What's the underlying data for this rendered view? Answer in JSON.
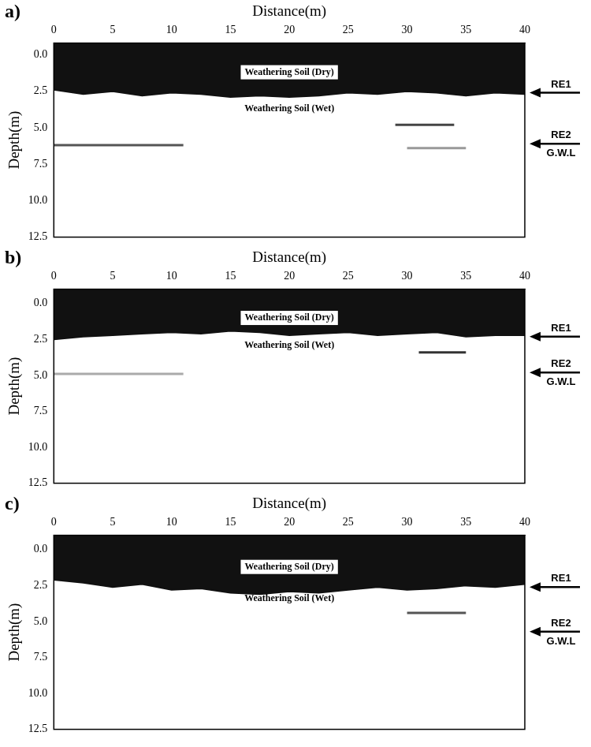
{
  "chart_data": [
    {
      "type": "line",
      "panel": "a)",
      "x_title": "Distance(m)",
      "y_title": "Depth(m)",
      "xlim": [
        0,
        40
      ],
      "xticks": [
        0,
        5,
        10,
        15,
        20,
        25,
        30,
        35,
        40
      ],
      "ylim": [
        12.5,
        -0.8
      ],
      "yticks": [
        {
          "value": 0,
          "label": "0.0"
        },
        {
          "value": 2.5,
          "label": "2.5"
        },
        {
          "value": 5,
          "label": "5.0"
        },
        {
          "value": 7.5,
          "label": "7.5"
        },
        {
          "value": 10,
          "label": "10.0"
        },
        {
          "value": 12.5,
          "label": "12.5"
        }
      ],
      "grid": false,
      "dry_layer": {
        "color": "#111111",
        "x": [
          0,
          2.5,
          5,
          7.5,
          10,
          12.5,
          15,
          17.5,
          20,
          22.5,
          25,
          27.5,
          30,
          32.5,
          35,
          37.5,
          40
        ],
        "base": [
          2.4,
          2.7,
          2.5,
          2.8,
          2.6,
          2.7,
          2.9,
          2.8,
          2.9,
          2.8,
          2.6,
          2.7,
          2.5,
          2.6,
          2.8,
          2.6,
          2.7
        ]
      },
      "reflectors": [
        {
          "x": [
            0,
            11
          ],
          "depth": 6.2,
          "color": "#555555"
        },
        {
          "x": [
            29,
            34
          ],
          "depth": 4.8,
          "color": "#444444"
        },
        {
          "x": [
            30,
            35
          ],
          "depth": 6.4,
          "color": "#999999"
        }
      ],
      "annotations": [
        {
          "text": "Weathering Soil (Dry)",
          "x": 20,
          "y": 1.2,
          "boxed": true
        },
        {
          "text": "Weathering Soil (Wet)",
          "x": 20,
          "y": 3.7,
          "boxed": false
        }
      ],
      "markers": [
        {
          "texts": [
            "RE1"
          ],
          "depth": 2.6
        },
        {
          "texts": [
            "RE2",
            "G.W.L"
          ],
          "depth": 6.1
        }
      ]
    },
    {
      "type": "line",
      "panel": "b)",
      "x_title": "Distance(m)",
      "y_title": "Depth(m)",
      "xlim": [
        0,
        40
      ],
      "xticks": [
        0,
        5,
        10,
        15,
        20,
        25,
        30,
        35,
        40
      ],
      "ylim": [
        12.5,
        -1.0
      ],
      "yticks": [
        {
          "value": 0,
          "label": "0.0"
        },
        {
          "value": 2.5,
          "label": "2.5"
        },
        {
          "value": 5,
          "label": "5.0"
        },
        {
          "value": 7.5,
          "label": "7.5"
        },
        {
          "value": 10,
          "label": "10.0"
        },
        {
          "value": 12.5,
          "label": "12.5"
        }
      ],
      "grid": false,
      "dry_layer": {
        "color": "#111111",
        "x": [
          0,
          2.5,
          5,
          7.5,
          10,
          12.5,
          15,
          17.5,
          20,
          22.5,
          25,
          27.5,
          30,
          32.5,
          35,
          37.5,
          40
        ],
        "base": [
          2.5,
          2.3,
          2.2,
          2.1,
          2.0,
          2.1,
          1.9,
          2.0,
          2.2,
          2.1,
          2.0,
          2.2,
          2.1,
          2.0,
          2.3,
          2.2,
          2.2
        ]
      },
      "reflectors": [
        {
          "x": [
            0,
            11
          ],
          "depth": 4.9,
          "color": "#aaaaaa"
        },
        {
          "x": [
            31,
            35
          ],
          "depth": 3.4,
          "color": "#333333"
        }
      ],
      "annotations": [
        {
          "text": "Weathering Soil (Dry)",
          "x": 20,
          "y": 1.0,
          "boxed": true
        },
        {
          "text": "Weathering Soil (Wet)",
          "x": 20,
          "y": 2.9,
          "boxed": false
        }
      ],
      "markers": [
        {
          "texts": [
            "RE1"
          ],
          "depth": 2.3
        },
        {
          "texts": [
            "RE2",
            "G.W.L"
          ],
          "depth": 4.8
        }
      ]
    },
    {
      "type": "line",
      "panel": "c)",
      "x_title": "Distance(m)",
      "y_title": "Depth(m)",
      "xlim": [
        0,
        40
      ],
      "xticks": [
        0,
        5,
        10,
        15,
        20,
        25,
        30,
        35,
        40
      ],
      "ylim": [
        12.5,
        -1.0
      ],
      "yticks": [
        {
          "value": 0,
          "label": "0.0"
        },
        {
          "value": 2.5,
          "label": "2.5"
        },
        {
          "value": 5,
          "label": "5.0"
        },
        {
          "value": 7.5,
          "label": "7.5"
        },
        {
          "value": 10,
          "label": "10.0"
        },
        {
          "value": 12.5,
          "label": "12.5"
        }
      ],
      "grid": false,
      "dry_layer": {
        "color": "#111111",
        "x": [
          0,
          2.5,
          5,
          7.5,
          10,
          12.5,
          15,
          17.5,
          20,
          22.5,
          25,
          27.5,
          30,
          32.5,
          35,
          37.5,
          40
        ],
        "base": [
          2.1,
          2.3,
          2.6,
          2.4,
          2.8,
          2.7,
          3.0,
          3.1,
          2.9,
          3.0,
          2.8,
          2.6,
          2.8,
          2.7,
          2.5,
          2.6,
          2.4
        ]
      },
      "reflectors": [
        {
          "x": [
            30,
            35
          ],
          "depth": 4.4,
          "color": "#555555"
        }
      ],
      "annotations": [
        {
          "text": "Weathering Soil (Dry)",
          "x": 20,
          "y": 1.2,
          "boxed": true
        },
        {
          "text": "Weathering Soil (Wet)",
          "x": 20,
          "y": 3.4,
          "boxed": false
        }
      ],
      "markers": [
        {
          "texts": [
            "RE1"
          ],
          "depth": 2.6
        },
        {
          "texts": [
            "RE2",
            "G.W.L"
          ],
          "depth": 5.7
        }
      ]
    }
  ]
}
